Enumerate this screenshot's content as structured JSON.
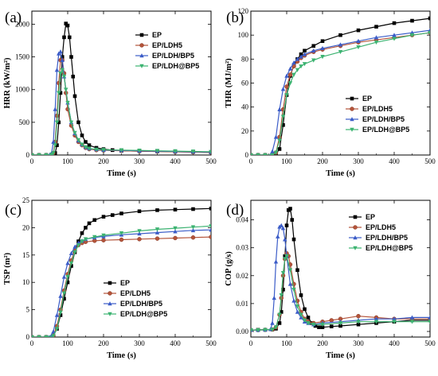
{
  "chart_data": [
    {
      "panel": "(a)",
      "type": "line",
      "xlabel": "Time (s)",
      "ylabel": "HRR (kW/m²)",
      "xlim": [
        0,
        500
      ],
      "ylim": [
        0,
        2200
      ],
      "xticks": [
        0,
        100,
        200,
        300,
        400,
        500
      ],
      "yticks": [
        0,
        500,
        1000,
        1500,
        2000
      ],
      "legend_position": "top-right",
      "series": [
        {
          "name": "EP",
          "color": "#000000",
          "marker": "square",
          "x": [
            0,
            20,
            40,
            55,
            65,
            70,
            75,
            80,
            85,
            90,
            95,
            100,
            105,
            110,
            115,
            120,
            130,
            140,
            150,
            160,
            180,
            200,
            225,
            250,
            300,
            350,
            400,
            450,
            500
          ],
          "y": [
            0,
            0,
            0,
            5,
            30,
            150,
            500,
            950,
            1500,
            1800,
            2010,
            1980,
            1800,
            1500,
            1200,
            900,
            500,
            300,
            200,
            150,
            110,
            90,
            75,
            65,
            60,
            55,
            50,
            45,
            40
          ]
        },
        {
          "name": "EP/LDH5",
          "color": "#b4543a",
          "marker": "circle",
          "x": [
            0,
            20,
            40,
            55,
            60,
            65,
            70,
            75,
            80,
            85,
            90,
            95,
            100,
            110,
            120,
            130,
            140,
            150,
            160,
            180,
            200,
            250,
            300,
            350,
            400,
            450,
            500
          ],
          "y": [
            0,
            0,
            0,
            5,
            30,
            200,
            600,
            1100,
            1450,
            1450,
            1250,
            950,
            700,
            450,
            300,
            200,
            150,
            110,
            90,
            75,
            70,
            65,
            60,
            55,
            50,
            45,
            40
          ]
        },
        {
          "name": "EP/LDH/BP5",
          "color": "#3b5cc8",
          "marker": "triangle-up",
          "x": [
            0,
            20,
            40,
            50,
            55,
            60,
            65,
            70,
            75,
            80,
            85,
            90,
            100,
            110,
            120,
            130,
            140,
            150,
            160,
            180,
            200,
            250,
            300,
            350,
            400,
            450,
            500
          ],
          "y": [
            0,
            0,
            0,
            5,
            30,
            200,
            700,
            1300,
            1550,
            1580,
            1450,
            1200,
            800,
            500,
            330,
            220,
            160,
            120,
            100,
            85,
            75,
            70,
            65,
            60,
            55,
            50,
            45
          ]
        },
        {
          "name": "EP/LDH@BP5",
          "color": "#3cb371",
          "marker": "triangle-down",
          "x": [
            0,
            20,
            40,
            55,
            60,
            65,
            70,
            75,
            80,
            85,
            90,
            95,
            100,
            110,
            120,
            130,
            140,
            150,
            160,
            180,
            200,
            250,
            300,
            350,
            400,
            450,
            500
          ],
          "y": [
            0,
            0,
            0,
            5,
            30,
            150,
            500,
            950,
            1250,
            1300,
            1200,
            1000,
            800,
            500,
            340,
            230,
            160,
            120,
            100,
            85,
            80,
            75,
            70,
            65,
            60,
            55,
            50
          ]
        }
      ]
    },
    {
      "panel": "(b)",
      "type": "line",
      "xlabel": "Time (s)",
      "ylabel": "THR (MJ/m²)",
      "xlim": [
        0,
        500
      ],
      "ylim": [
        0,
        120
      ],
      "xticks": [
        0,
        100,
        200,
        300,
        400,
        500
      ],
      "yticks": [
        0,
        20,
        40,
        60,
        80,
        100,
        120
      ],
      "legend_position": "bottom-right",
      "series": [
        {
          "name": "EP",
          "color": "#000000",
          "marker": "square",
          "x": [
            0,
            20,
            40,
            60,
            70,
            80,
            90,
            100,
            110,
            120,
            130,
            140,
            150,
            175,
            200,
            250,
            300,
            350,
            400,
            450,
            500
          ],
          "y": [
            0,
            0,
            0,
            0,
            1,
            5,
            25,
            50,
            66,
            75,
            80,
            84,
            87,
            91,
            95,
            100,
            104,
            107,
            110,
            112,
            114
          ]
        },
        {
          "name": "EP/LDH5",
          "color": "#b4543a",
          "marker": "circle",
          "x": [
            0,
            20,
            40,
            60,
            70,
            80,
            90,
            100,
            110,
            120,
            130,
            140,
            150,
            175,
            200,
            250,
            300,
            350,
            400,
            450,
            500
          ],
          "y": [
            0,
            0,
            0,
            0,
            2,
            15,
            38,
            57,
            67,
            74,
            78,
            81,
            83,
            86,
            88,
            91,
            94,
            96,
            98,
            100,
            102
          ]
        },
        {
          "name": "EP/LDH/BP5",
          "color": "#3b5cc8",
          "marker": "triangle-up",
          "x": [
            0,
            20,
            40,
            55,
            60,
            70,
            80,
            90,
            100,
            110,
            120,
            130,
            140,
            150,
            175,
            200,
            250,
            300,
            350,
            400,
            450,
            500
          ],
          "y": [
            0,
            0,
            0,
            0,
            3,
            15,
            38,
            55,
            66,
            72,
            77,
            80,
            82,
            84,
            87,
            89,
            92,
            95,
            98,
            100,
            102,
            104
          ]
        },
        {
          "name": "EP/LDH@BP5",
          "color": "#3cb371",
          "marker": "triangle-down",
          "x": [
            0,
            20,
            40,
            60,
            70,
            80,
            90,
            100,
            110,
            120,
            130,
            140,
            150,
            175,
            200,
            250,
            300,
            350,
            400,
            450,
            500
          ],
          "y": [
            0,
            0,
            0,
            0,
            2,
            12,
            32,
            50,
            60,
            67,
            71,
            74,
            76,
            79,
            82,
            86,
            90,
            94,
            97,
            100,
            102
          ]
        }
      ]
    },
    {
      "panel": "(c)",
      "type": "line",
      "xlabel": "Time (s)",
      "ylabel": "TSP (m²)",
      "xlim": [
        0,
        500
      ],
      "ylim": [
        0,
        25
      ],
      "xticks": [
        0,
        100,
        200,
        300,
        400,
        500
      ],
      "yticks": [
        0,
        5,
        10,
        15,
        20,
        25
      ],
      "legend_position": "bottom-right",
      "series": [
        {
          "name": "EP",
          "color": "#000000",
          "marker": "square",
          "x": [
            0,
            20,
            40,
            60,
            70,
            80,
            90,
            100,
            110,
            120,
            130,
            140,
            150,
            160,
            175,
            200,
            225,
            250,
            300,
            350,
            400,
            450,
            500
          ],
          "y": [
            0,
            0,
            0,
            0.2,
            1.5,
            4,
            7,
            10,
            13,
            15.5,
            17.5,
            19,
            20,
            20.8,
            21.4,
            22,
            22.3,
            22.6,
            23,
            23.2,
            23.3,
            23.4,
            23.5
          ]
        },
        {
          "name": "EP/LDH5",
          "color": "#b4543a",
          "marker": "circle",
          "x": [
            0,
            20,
            40,
            60,
            70,
            80,
            90,
            100,
            110,
            120,
            130,
            140,
            150,
            175,
            200,
            250,
            300,
            350,
            400,
            450,
            500
          ],
          "y": [
            0,
            0,
            0,
            0.3,
            2,
            5,
            8.5,
            11.5,
            14,
            15.8,
            16.8,
            17.2,
            17.4,
            17.6,
            17.7,
            17.8,
            17.9,
            18,
            18.1,
            18.2,
            18.3
          ]
        },
        {
          "name": "EP/LDH/BP5",
          "color": "#3b5cc8",
          "marker": "triangle-up",
          "x": [
            0,
            20,
            40,
            55,
            60,
            70,
            80,
            90,
            100,
            110,
            120,
            130,
            140,
            150,
            175,
            200,
            250,
            300,
            350,
            400,
            450,
            500
          ],
          "y": [
            0,
            0,
            0,
            0.3,
            1,
            4,
            7.5,
            11,
            13.5,
            15.3,
            16.5,
            17.2,
            17.6,
            17.9,
            18.2,
            18.4,
            18.7,
            18.9,
            19.1,
            19.3,
            19.5,
            19.6
          ]
        },
        {
          "name": "EP/LDH@BP5",
          "color": "#3cb371",
          "marker": "triangle-down",
          "x": [
            0,
            20,
            40,
            60,
            70,
            80,
            90,
            100,
            110,
            120,
            130,
            140,
            150,
            175,
            200,
            250,
            300,
            350,
            400,
            450,
            500
          ],
          "y": [
            0,
            0,
            0,
            0.2,
            1.5,
            4.5,
            8,
            11,
            13.5,
            15.5,
            16.8,
            17.5,
            17.9,
            18.3,
            18.6,
            19,
            19.4,
            19.7,
            19.9,
            20.1,
            20.3
          ]
        }
      ]
    },
    {
      "panel": "(d)",
      "type": "line",
      "xlabel": "Time (s)",
      "ylabel": "COP (g/s)",
      "xlim": [
        0,
        500
      ],
      "ylim": [
        -0.002,
        0.047
      ],
      "xticks": [
        0,
        100,
        200,
        300,
        400,
        500
      ],
      "yticks": [
        0.0,
        0.01,
        0.02,
        0.03,
        0.04
      ],
      "legend_position": "top-right",
      "series": [
        {
          "name": "EP",
          "color": "#000000",
          "marker": "square",
          "x": [
            0,
            20,
            40,
            60,
            70,
            80,
            85,
            90,
            95,
            100,
            105,
            110,
            115,
            120,
            130,
            140,
            150,
            160,
            170,
            180,
            190,
            200,
            225,
            250,
            300,
            350,
            400,
            450,
            500
          ],
          "y": [
            0.0005,
            0.0006,
            0.0006,
            0.0007,
            0.001,
            0.003,
            0.007,
            0.015,
            0.027,
            0.038,
            0.0435,
            0.044,
            0.04,
            0.033,
            0.022,
            0.013,
            0.008,
            0.005,
            0.003,
            0.002,
            0.0015,
            0.0015,
            0.0018,
            0.002,
            0.0025,
            0.003,
            0.0035,
            0.004,
            0.004
          ]
        },
        {
          "name": "EP/LDH5",
          "color": "#b4543a",
          "marker": "circle",
          "x": [
            0,
            20,
            40,
            60,
            70,
            80,
            85,
            90,
            95,
            100,
            105,
            110,
            120,
            130,
            140,
            150,
            160,
            175,
            200,
            225,
            250,
            300,
            350,
            400,
            450,
            500
          ],
          "y": [
            0.0005,
            0.0005,
            0.0006,
            0.0007,
            0.0015,
            0.006,
            0.012,
            0.02,
            0.026,
            0.028,
            0.027,
            0.024,
            0.017,
            0.011,
            0.007,
            0.0045,
            0.0035,
            0.003,
            0.0035,
            0.004,
            0.0045,
            0.0055,
            0.005,
            0.0045,
            0.0045,
            0.0045
          ]
        },
        {
          "name": "EP/LDH/BP5",
          "color": "#3b5cc8",
          "marker": "triangle-up",
          "x": [
            0,
            20,
            40,
            55,
            60,
            65,
            70,
            75,
            80,
            85,
            90,
            95,
            100,
            110,
            120,
            130,
            140,
            150,
            160,
            175,
            200,
            250,
            300,
            350,
            400,
            450,
            500
          ],
          "y": [
            0.0005,
            0.0005,
            0.0006,
            0.0008,
            0.003,
            0.012,
            0.025,
            0.034,
            0.0375,
            0.038,
            0.037,
            0.033,
            0.027,
            0.017,
            0.011,
            0.007,
            0.005,
            0.0035,
            0.003,
            0.0025,
            0.003,
            0.0035,
            0.004,
            0.0045,
            0.0045,
            0.005,
            0.005
          ]
        },
        {
          "name": "EP/LDH@BP5",
          "color": "#3cb371",
          "marker": "triangle-down",
          "x": [
            0,
            20,
            40,
            60,
            70,
            80,
            85,
            90,
            95,
            100,
            110,
            120,
            130,
            140,
            150,
            160,
            175,
            200,
            250,
            300,
            350,
            400,
            450,
            500
          ],
          "y": [
            0.0005,
            0.0005,
            0.0006,
            0.0007,
            0.0015,
            0.006,
            0.013,
            0.021,
            0.026,
            0.027,
            0.022,
            0.015,
            0.009,
            0.006,
            0.004,
            0.003,
            0.0025,
            0.0025,
            0.003,
            0.0035,
            0.0035,
            0.0035,
            0.0035,
            0.0035
          ]
        }
      ]
    }
  ]
}
